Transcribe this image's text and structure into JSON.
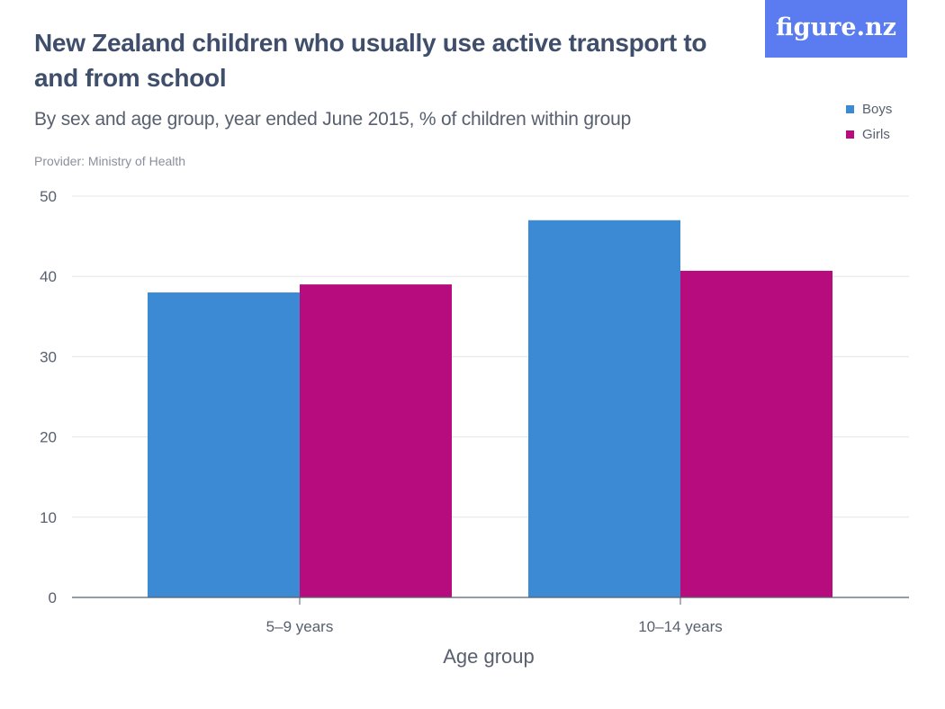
{
  "header": {
    "title": "New Zealand children who usually use active transport to and from school",
    "subtitle": "By sex and age group, year ended June 2015, % of children within group",
    "provider": "Provider: Ministry of Health",
    "logo_text": "figure.nz"
  },
  "colors": {
    "boys": "#3d8ad4",
    "girls": "#b60c7d",
    "logo_bg": "#5a7cf0"
  },
  "chart_data": {
    "type": "bar",
    "title": "New Zealand children who usually use active transport to and from school",
    "xlabel": "Age group",
    "ylabel": "",
    "categories": [
      "5–9 years",
      "10–14 years"
    ],
    "series": [
      {
        "name": "Boys",
        "values": [
          38.0,
          47.0
        ]
      },
      {
        "name": "Girls",
        "values": [
          39.0,
          40.7
        ]
      }
    ],
    "ylim": [
      0,
      50
    ],
    "yticks": [
      0,
      10,
      20,
      30,
      40,
      50
    ],
    "grid": true,
    "legend": "top-right"
  }
}
